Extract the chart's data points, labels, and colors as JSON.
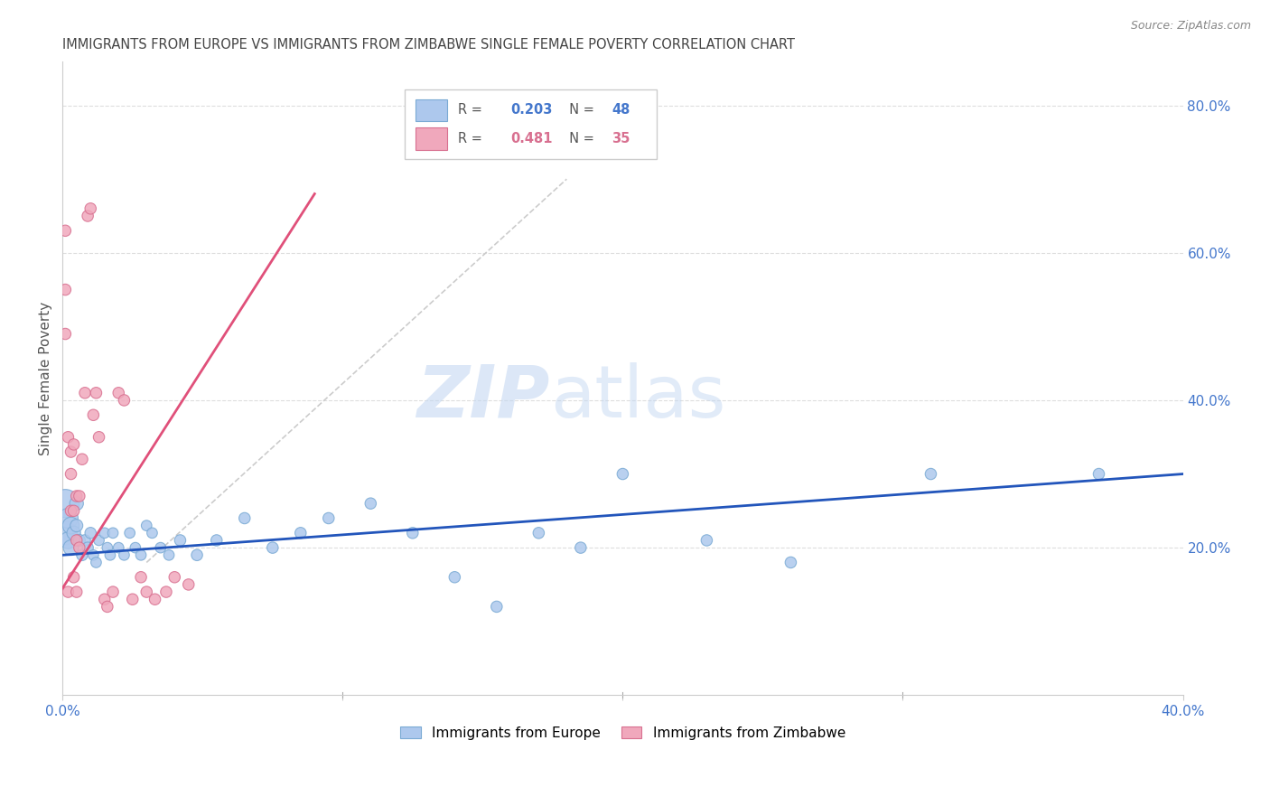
{
  "title": "IMMIGRANTS FROM EUROPE VS IMMIGRANTS FROM ZIMBABWE SINGLE FEMALE POVERTY CORRELATION CHART",
  "source": "Source: ZipAtlas.com",
  "ylabel": "Single Female Poverty",
  "europe_label": "Immigrants from Europe",
  "zimbabwe_label": "Immigrants from Zimbabwe",
  "europe_R": 0.203,
  "europe_N": 48,
  "zimbabwe_R": 0.481,
  "zimbabwe_N": 35,
  "xlim": [
    0.0,
    0.4
  ],
  "ylim": [
    0.0,
    0.86
  ],
  "right_yticks": [
    0.2,
    0.4,
    0.6,
    0.8
  ],
  "xticks": [
    0.0,
    0.1,
    0.2,
    0.3,
    0.4
  ],
  "xtick_labels": [
    "0.0%",
    "",
    "",
    "",
    "40.0%"
  ],
  "europe_color": "#adc8ed",
  "europe_edge": "#7aaad4",
  "zimbabwe_color": "#f0a8bc",
  "zimbabwe_edge": "#d87090",
  "europe_line_color": "#2255bb",
  "zimbabwe_line_color": "#e0507a",
  "ref_line_color": "#cccccc",
  "grid_color": "#dddddd",
  "title_color": "#444444",
  "right_axis_color": "#4477cc",
  "europe_x": [
    0.001,
    0.001,
    0.002,
    0.002,
    0.003,
    0.003,
    0.004,
    0.005,
    0.005,
    0.006,
    0.007,
    0.008,
    0.009,
    0.01,
    0.011,
    0.012,
    0.013,
    0.015,
    0.016,
    0.017,
    0.018,
    0.02,
    0.022,
    0.024,
    0.026,
    0.028,
    0.03,
    0.032,
    0.035,
    0.038,
    0.042,
    0.048,
    0.055,
    0.065,
    0.075,
    0.085,
    0.095,
    0.11,
    0.125,
    0.14,
    0.155,
    0.17,
    0.185,
    0.2,
    0.23,
    0.26,
    0.31,
    0.37
  ],
  "europe_y": [
    0.26,
    0.22,
    0.24,
    0.21,
    0.23,
    0.2,
    0.22,
    0.26,
    0.23,
    0.21,
    0.19,
    0.21,
    0.2,
    0.22,
    0.19,
    0.18,
    0.21,
    0.22,
    0.2,
    0.19,
    0.22,
    0.2,
    0.19,
    0.22,
    0.2,
    0.19,
    0.23,
    0.22,
    0.2,
    0.19,
    0.21,
    0.19,
    0.21,
    0.24,
    0.2,
    0.22,
    0.24,
    0.26,
    0.22,
    0.16,
    0.12,
    0.22,
    0.2,
    0.3,
    0.21,
    0.18,
    0.3,
    0.3
  ],
  "europe_size": [
    500,
    350,
    250,
    180,
    180,
    150,
    120,
    120,
    100,
    90,
    80,
    80,
    80,
    80,
    70,
    70,
    70,
    70,
    70,
    70,
    70,
    70,
    70,
    70,
    70,
    70,
    70,
    70,
    70,
    70,
    80,
    80,
    80,
    80,
    80,
    80,
    80,
    80,
    80,
    80,
    80,
    80,
    80,
    80,
    80,
    80,
    80,
    80
  ],
  "zimbabwe_x": [
    0.001,
    0.001,
    0.001,
    0.002,
    0.002,
    0.003,
    0.003,
    0.003,
    0.004,
    0.004,
    0.004,
    0.005,
    0.005,
    0.005,
    0.006,
    0.006,
    0.007,
    0.008,
    0.009,
    0.01,
    0.011,
    0.012,
    0.013,
    0.015,
    0.016,
    0.018,
    0.02,
    0.022,
    0.025,
    0.028,
    0.03,
    0.033,
    0.037,
    0.04,
    0.045
  ],
  "zimbabwe_y": [
    0.63,
    0.55,
    0.49,
    0.35,
    0.14,
    0.33,
    0.3,
    0.25,
    0.34,
    0.25,
    0.16,
    0.27,
    0.21,
    0.14,
    0.27,
    0.2,
    0.32,
    0.41,
    0.65,
    0.66,
    0.38,
    0.41,
    0.35,
    0.13,
    0.12,
    0.14,
    0.41,
    0.4,
    0.13,
    0.16,
    0.14,
    0.13,
    0.14,
    0.16,
    0.15
  ],
  "zimbabwe_size": [
    80,
    80,
    80,
    80,
    80,
    80,
    80,
    80,
    80,
    80,
    80,
    80,
    80,
    80,
    80,
    80,
    80,
    80,
    80,
    80,
    80,
    80,
    80,
    80,
    80,
    80,
    80,
    80,
    80,
    80,
    80,
    80,
    80,
    80,
    80
  ],
  "ref_line_x": [
    0.03,
    0.18
  ],
  "ref_line_y": [
    0.18,
    0.7
  ]
}
